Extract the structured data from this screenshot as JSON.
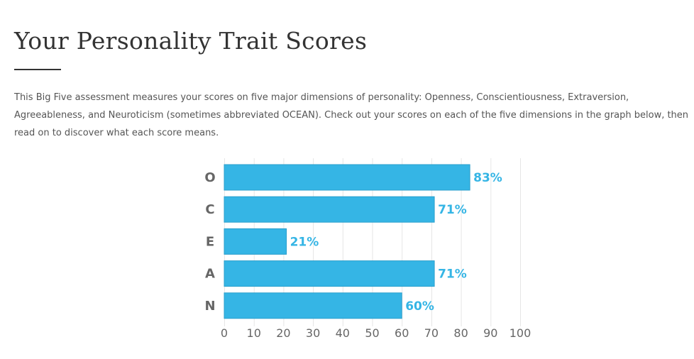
{
  "page": {
    "title": "Your Personality Trait Scores",
    "intro": "This Big Five assessment measures your scores on five major dimensions of personality: Openness, Conscientiousness, Extraversion, Agreeableness, and Neuroticism (sometimes abbreviated OCEAN). Check out your scores on each of the five dimensions in the graph below, then read on to discover what each score means."
  },
  "colors": {
    "bar": "#35b5e5",
    "bar_border": "#2a9fcc",
    "value_label": "#35b5e5",
    "gridline": "#e6e6e6",
    "axis_text": "#666666"
  },
  "chart_data": {
    "type": "bar",
    "orientation": "horizontal",
    "categories": [
      "O",
      "C",
      "E",
      "A",
      "N"
    ],
    "values": [
      83,
      71,
      21,
      71,
      60
    ],
    "value_labels": [
      "83%",
      "71%",
      "21%",
      "71%",
      "60%"
    ],
    "xlim": [
      0,
      100
    ],
    "xticks": [
      0,
      10,
      20,
      30,
      40,
      50,
      60,
      70,
      80,
      90,
      100
    ],
    "xlabel": "",
    "ylabel": "",
    "title": "",
    "grid": true,
    "legend": "none"
  }
}
